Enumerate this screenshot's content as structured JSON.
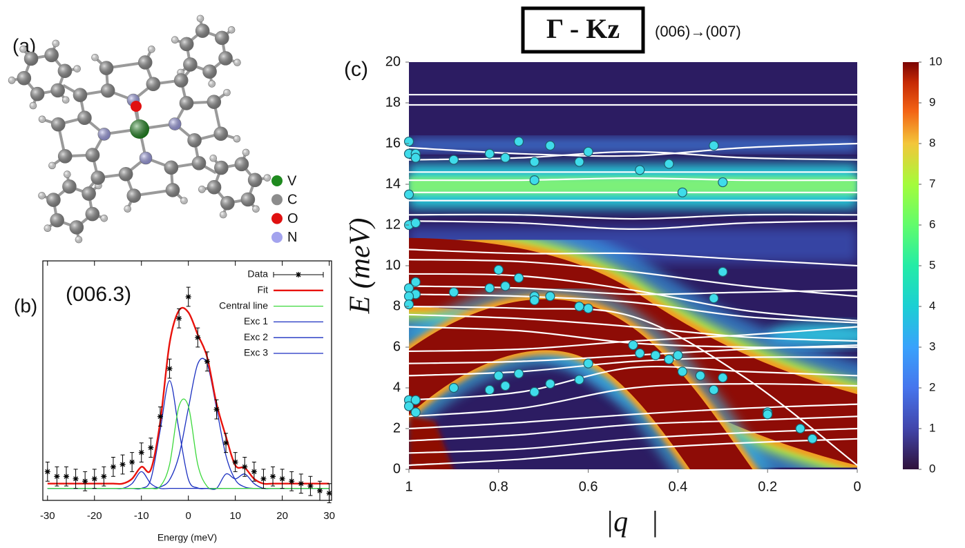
{
  "molecule": {
    "label": "(a)",
    "legend": [
      {
        "name": "V",
        "color": "#1f8a1f"
      },
      {
        "name": "C",
        "color": "#8c8c8c"
      },
      {
        "name": "O",
        "color": "#e01010"
      },
      {
        "name": "N",
        "color": "#a3a3ee"
      }
    ]
  },
  "chart_data": [
    {
      "type": "line",
      "label": "(b)",
      "title": "(006.3)",
      "xlabel": "Energy (meV)",
      "x": [
        -30,
        -28,
        -26,
        -24,
        -22,
        -20,
        -18,
        -16,
        -14,
        -12,
        -10,
        -8,
        -6,
        -4,
        -2,
        0,
        2,
        4,
        6,
        8,
        10,
        12,
        14,
        16,
        18,
        20,
        22,
        24,
        26,
        28,
        30
      ],
      "xlim": [
        -31,
        30.5
      ],
      "xticks": [
        -30,
        -20,
        -10,
        0,
        10,
        20,
        30
      ],
      "ylim": [
        0,
        100
      ],
      "series": [
        {
          "name": "Data",
          "color": "#000000",
          "error": 4,
          "values": [
            12,
            10,
            10,
            9,
            8,
            9,
            10,
            14,
            15,
            16,
            20,
            22,
            35,
            55,
            76,
            85,
            68,
            58,
            38,
            24,
            16,
            14,
            12,
            9,
            10,
            9,
            8,
            7,
            6,
            4,
            3
          ]
        },
        {
          "name": "Fit",
          "color": "#e8120c",
          "values": [
            7,
            7,
            7,
            7,
            7,
            7,
            7,
            7,
            7,
            9,
            14,
            12.8,
            32.7,
            65.6,
            79.3,
            78.5,
            69.2,
            59.8,
            40.4,
            26.7,
            14.6,
            13.6,
            9,
            7,
            7,
            7,
            7,
            7,
            7,
            7,
            7
          ]
        },
        {
          "name": "Central line",
          "color": "#3ad83a",
          "values": [
            5,
            5,
            5,
            5,
            5,
            5,
            5,
            5,
            5,
            5,
            5,
            5,
            5.8,
            15,
            39.3,
            39.3,
            15,
            5.8,
            5,
            5,
            5,
            5,
            5,
            5,
            5,
            5,
            5,
            5,
            5,
            5,
            5
          ]
        },
        {
          "name": "Exc 1",
          "color": "#1a2fc0",
          "values": [
            5,
            5,
            5,
            5,
            5,
            5,
            5,
            5,
            5,
            5,
            5,
            5,
            5.6,
            8.6,
            18.7,
            38.4,
            57,
            57,
            38.4,
            18.7,
            8.6,
            5.6,
            5,
            5,
            5,
            5,
            5,
            5,
            5,
            5,
            5
          ]
        },
        {
          "name": "Exc 2",
          "color": "#1a2fc0",
          "values": [
            5,
            5,
            5,
            5,
            5,
            5,
            5,
            5,
            5,
            5,
            5,
            8.8,
            29.3,
            50,
            29.3,
            8.8,
            5.2,
            5,
            5,
            5,
            5,
            5,
            5,
            5,
            5,
            5,
            5,
            5,
            5,
            5,
            5
          ]
        },
        {
          "name": "Exc 3",
          "color": "#1a2fc0",
          "values": [
            5,
            5,
            5,
            5,
            5,
            5,
            5,
            5,
            5,
            7,
            12,
            7,
            5,
            5,
            5,
            5,
            5,
            5,
            5,
            11,
            9,
            11,
            7,
            5,
            5,
            5,
            5,
            5,
            5,
            5,
            5
          ]
        }
      ]
    },
    {
      "type": "heatmap",
      "label": "(c)",
      "title": "Γ - Kz",
      "subtitle": "(006)→(007)",
      "xlabel": "|q⃗|",
      "ylabel": "E (meV)",
      "xlim": [
        1,
        0
      ],
      "xticks": [
        1,
        0.8,
        0.6,
        0.4,
        0.2,
        0
      ],
      "ylim": [
        0,
        20
      ],
      "yticks": [
        0,
        2,
        4,
        6,
        8,
        10,
        12,
        14,
        16,
        18,
        20
      ],
      "zlim": [
        0,
        10
      ],
      "zticks": [
        0,
        1,
        2,
        3,
        4,
        5,
        6,
        7,
        8,
        9,
        10
      ],
      "lines": {
        "color": "#ffffff",
        "x": [
          1,
          0.75,
          0.5,
          0.25,
          0
        ],
        "series": [
          {
            "values": [
              18.4,
              18.4,
              18.4,
              18.4,
              18.4
            ]
          },
          {
            "values": [
              17.9,
              17.9,
              17.9,
              17.9,
              17.9
            ]
          },
          {
            "values": [
              15.8,
              15.5,
              15.4,
              15.8,
              16.0
            ]
          },
          {
            "values": [
              15.2,
              15.3,
              15.6,
              15.3,
              15.2
            ]
          },
          {
            "values": [
              14.6,
              14.6,
              14.6,
              14.6,
              14.6
            ]
          },
          {
            "values": [
              14.2,
              14.2,
              14.3,
              14.2,
              14.2
            ]
          },
          {
            "values": [
              13.6,
              13.6,
              13.6,
              13.6,
              13.6
            ]
          },
          {
            "values": [
              13.2,
              13.2,
              13.2,
              13.2,
              13.2
            ]
          },
          {
            "values": [
              12.5,
              12.5,
              12.3,
              12.5,
              12.5
            ]
          },
          {
            "values": [
              12.2,
              12.1,
              11.8,
              12.1,
              12.2
            ]
          },
          {
            "values": [
              10.8,
              10.6,
              10.6,
              10.3,
              10.0
            ]
          },
          {
            "values": [
              10.3,
              10.2,
              9.7,
              9.0,
              8.5
            ]
          },
          {
            "values": [
              9.6,
              9.5,
              8.8,
              7.8,
              7.3
            ]
          },
          {
            "values": [
              9.0,
              8.9,
              8.6,
              8.7,
              8.8
            ]
          },
          {
            "values": [
              8.6,
              8.5,
              8.2,
              7.5,
              7.2
            ]
          },
          {
            "values": [
              7.6,
              7.4,
              7.0,
              6.5,
              6.3
            ]
          },
          {
            "values": [
              7.0,
              6.8,
              6.2,
              6.0,
              6.0
            ]
          },
          {
            "values": [
              5.8,
              5.9,
              6.3,
              6.6,
              7.0
            ]
          },
          {
            "values": [
              5.2,
              5.3,
              5.6,
              5.9,
              6.1
            ]
          },
          {
            "values": [
              4.6,
              4.8,
              5.3,
              5.5,
              5.5
            ]
          },
          {
            "values": [
              3.4,
              3.8,
              5.0,
              4.8,
              4.6
            ]
          },
          {
            "values": [
              2.6,
              3.0,
              4.0,
              4.2,
              4.1
            ]
          },
          {
            "values": [
              2.0,
              2.3,
              2.7,
              3.0,
              3.2
            ]
          },
          {
            "values": [
              1.4,
              1.7,
              2.2,
              2.4,
              2.6
            ]
          },
          {
            "values": [
              0.8,
              1.0,
              1.5,
              1.8,
              2.0
            ]
          },
          {
            "values": [
              0.2,
              0.5,
              1.0,
              1.3,
              1.5
            ]
          },
          {
            "values": [
              8.0,
              7.9,
              7.5,
              4.5,
              0.2
            ]
          }
        ]
      },
      "points": {
        "color": "#3fdcea",
        "x": [
          1,
          1,
          0.985,
          0.985,
          1,
          1,
          0.985,
          0.985,
          1,
          0.985,
          1,
          1,
          1,
          0.985,
          1,
          0.985,
          0.9,
          0.9,
          0.9,
          0.82,
          0.785,
          0.755,
          0.685,
          0.72,
          0.72,
          0.62,
          0.6,
          0.485,
          0.42,
          0.39,
          0.32,
          0.3,
          0.8,
          0.82,
          0.785,
          0.755,
          0.72,
          0.72,
          0.685,
          0.62,
          0.6,
          0.32,
          0.3,
          0.8,
          0.82,
          0.785,
          0.755,
          0.72,
          0.685,
          0.62,
          0.6,
          0.5,
          0.485,
          0.45,
          0.42,
          0.4,
          0.39,
          0.35,
          0.32,
          0.3,
          0.2,
          0.2,
          0.127,
          0.1
        ],
        "y": [
          16.1,
          15.5,
          15.5,
          15.3,
          13.5,
          12.0,
          12.1,
          9.2,
          8.9,
          8.6,
          8.5,
          8.1,
          3.4,
          3.4,
          3.1,
          2.8,
          15.2,
          8.7,
          4.0,
          15.5,
          15.3,
          16.1,
          15.9,
          15.1,
          14.2,
          15.1,
          15.6,
          14.7,
          15.0,
          13.6,
          15.9,
          14.1,
          9.8,
          8.9,
          9.0,
          9.4,
          8.5,
          8.3,
          8.5,
          8.0,
          7.9,
          8.4,
          9.7,
          4.6,
          3.9,
          4.1,
          4.7,
          3.8,
          4.2,
          4.4,
          5.2,
          6.1,
          5.7,
          5.6,
          5.4,
          5.6,
          4.8,
          4.6,
          3.9,
          4.5,
          2.8,
          2.7,
          2.0,
          1.5
        ]
      }
    }
  ]
}
